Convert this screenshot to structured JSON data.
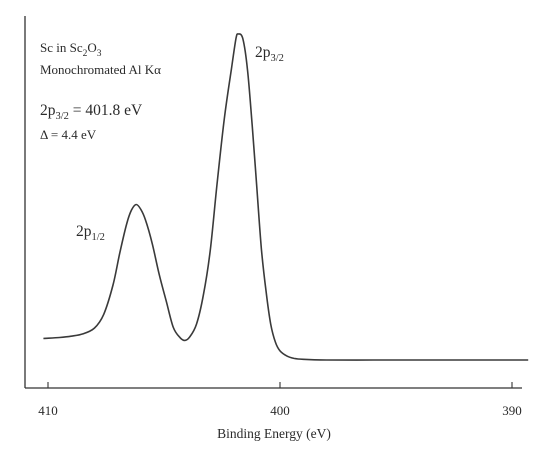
{
  "chart_data": {
    "type": "line",
    "title": "",
    "xlabel": "Binding Energy (eV)",
    "ylabel": "",
    "xlim": [
      410,
      390
    ],
    "x_reversed": true,
    "y_units": "relative intensity",
    "ylim": [
      0,
      1
    ],
    "grid": false,
    "legend": "none",
    "xticks": [
      410,
      400,
      390
    ],
    "xtick_labels": [
      "410",
      "400",
      "390"
    ],
    "annotations": {
      "sample": [
        "Sc in ",
        "Sc",
        "2",
        "O",
        "3"
      ],
      "source": "Monochromated Al Kα",
      "position": [
        "2p",
        "3/2",
        " = 401.8 eV"
      ],
      "splitting": "Δ = 4.4 eV",
      "peak_high": [
        "2p",
        "3/2"
      ],
      "peak_low": [
        "2p",
        "1/2"
      ]
    },
    "series": [
      {
        "color": "#3a3a3a",
        "points": [
          [
            410.2,
            0.066
          ],
          [
            409.5,
            0.069
          ],
          [
            409.0,
            0.073
          ],
          [
            408.5,
            0.08
          ],
          [
            408.0,
            0.098
          ],
          [
            407.6,
            0.14
          ],
          [
            407.2,
            0.23
          ],
          [
            406.9,
            0.33
          ],
          [
            406.6,
            0.42
          ],
          [
            406.4,
            0.46
          ],
          [
            406.2,
            0.477
          ],
          [
            406.0,
            0.462
          ],
          [
            405.8,
            0.43
          ],
          [
            405.5,
            0.355
          ],
          [
            405.2,
            0.26
          ],
          [
            404.9,
            0.18
          ],
          [
            404.6,
            0.1
          ],
          [
            404.3,
            0.068
          ],
          [
            404.1,
            0.06
          ],
          [
            403.9,
            0.07
          ],
          [
            403.6,
            0.11
          ],
          [
            403.3,
            0.2
          ],
          [
            403.0,
            0.34
          ],
          [
            402.7,
            0.55
          ],
          [
            402.4,
            0.74
          ],
          [
            402.1,
            0.89
          ],
          [
            401.9,
            0.985
          ],
          [
            401.8,
            1.0
          ],
          [
            401.6,
            0.985
          ],
          [
            401.4,
            0.89
          ],
          [
            401.2,
            0.72
          ],
          [
            401.0,
            0.53
          ],
          [
            400.8,
            0.34
          ],
          [
            400.6,
            0.21
          ],
          [
            400.4,
            0.11
          ],
          [
            400.2,
            0.055
          ],
          [
            400.0,
            0.028
          ],
          [
            399.7,
            0.012
          ],
          [
            399.4,
            0.005
          ],
          [
            399.0,
            0.002
          ],
          [
            398.0,
            0.0
          ],
          [
            396.0,
            0.0
          ],
          [
            394.0,
            0.0
          ],
          [
            392.0,
            0.0
          ],
          [
            390.0,
            0.0
          ],
          [
            389.3,
            0.0
          ]
        ]
      }
    ]
  }
}
